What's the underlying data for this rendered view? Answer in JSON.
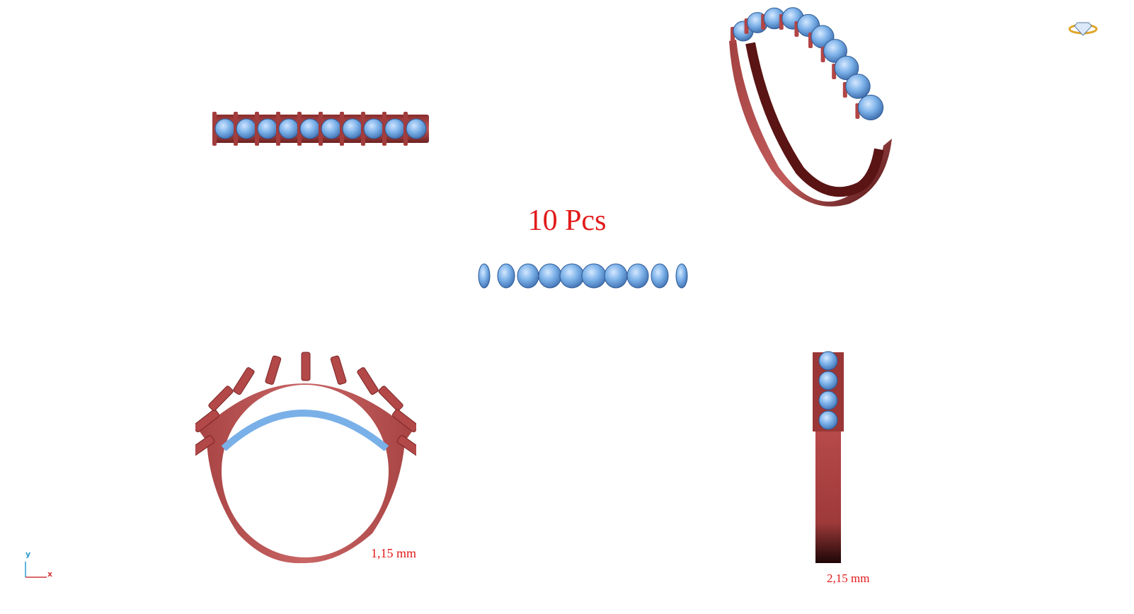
{
  "labels": {
    "piece_count": "10 Pcs",
    "front_width": "1,15 mm",
    "side_width": "2,15 mm"
  },
  "axis": {
    "y": "y",
    "x": "x"
  },
  "icons": {
    "corner_logo": "ring-diamond-icon"
  },
  "colors": {
    "metal": "#b84a4a",
    "metal_dark": "#6e1f1f",
    "stone": "#7ab0e8",
    "stone_dark": "#3f6fb0",
    "text_red": "#e21a1a",
    "axis_y": "#2a9bd0",
    "axis_x": "#d03a3a"
  }
}
